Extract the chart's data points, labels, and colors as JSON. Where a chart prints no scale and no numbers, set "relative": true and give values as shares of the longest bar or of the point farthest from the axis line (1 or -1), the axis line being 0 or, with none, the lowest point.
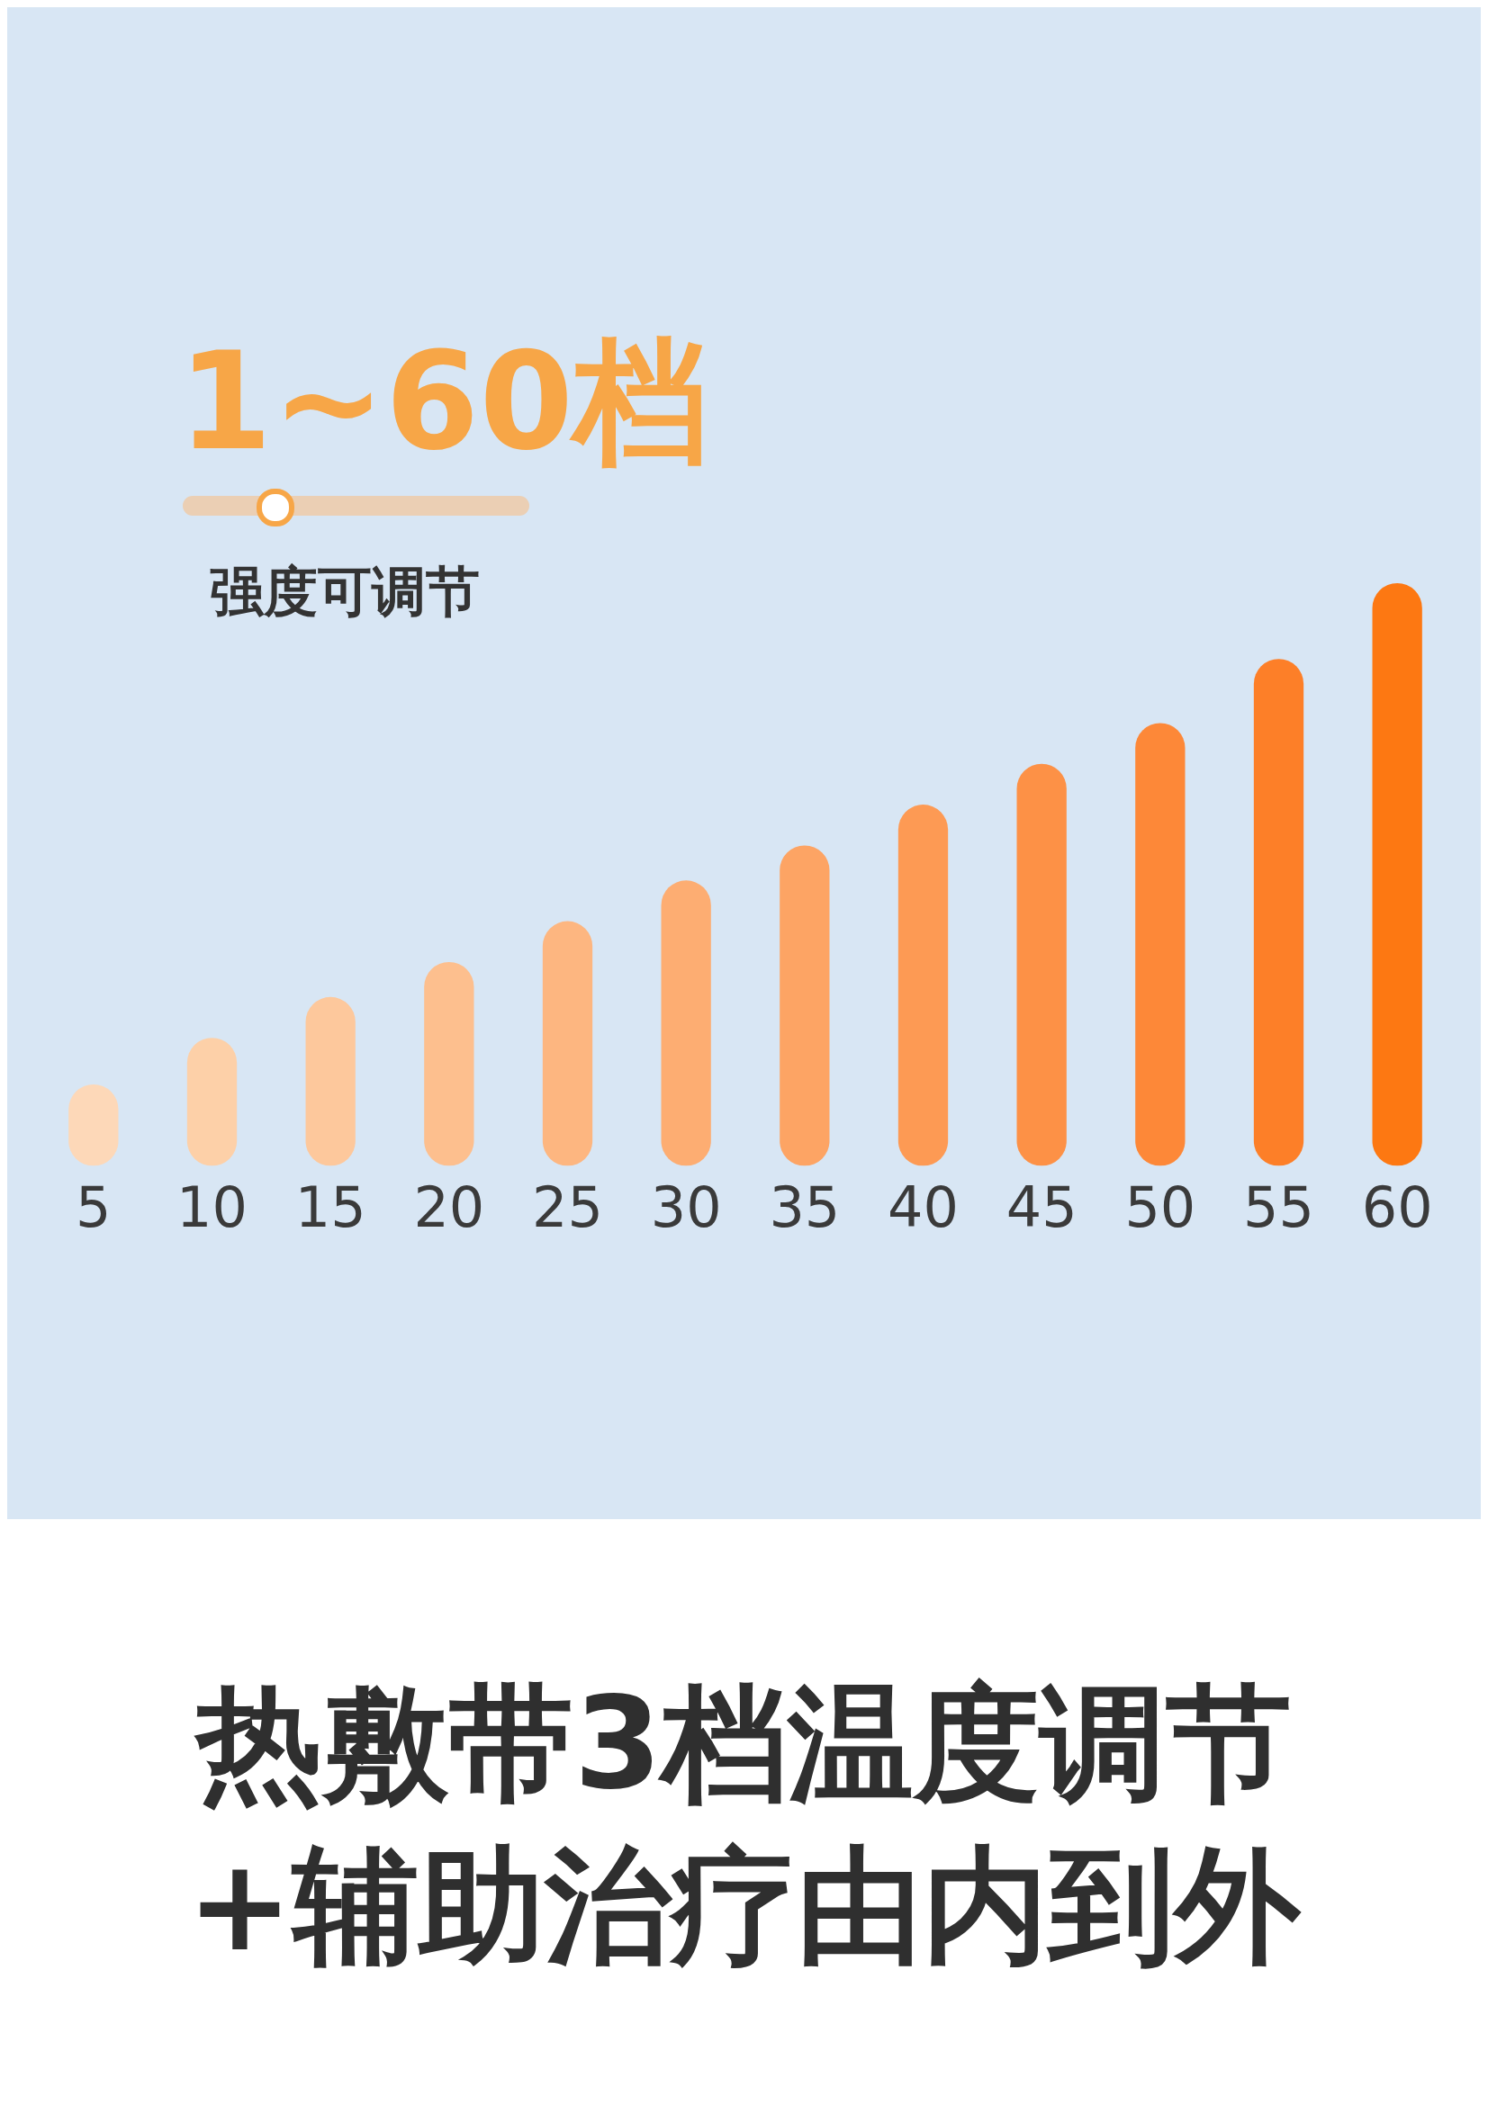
{
  "chart_data": {
    "type": "bar",
    "title": "1~60档",
    "subtitle": "强度可调节",
    "categories": [
      "5",
      "10",
      "15",
      "20",
      "25",
      "30",
      "35",
      "40",
      "45",
      "50",
      "55",
      "60"
    ],
    "values": [
      0.14,
      0.22,
      0.29,
      0.35,
      0.42,
      0.49,
      0.55,
      0.62,
      0.69,
      0.76,
      0.87,
      1
    ],
    "colors": [
      "#fdd8b8",
      "#fdd0a8",
      "#fdc89c",
      "#fdbf8e",
      "#fdb680",
      "#fdad72",
      "#fda464",
      "#fd9a54",
      "#fd9146",
      "#fd8838",
      "#fd7f28",
      "#fd7812"
    ],
    "relative": true,
    "grid": false,
    "legend": false,
    "annotations": [
      "热敷带3档温度调节",
      "+辅助治疗由内到外"
    ]
  }
}
